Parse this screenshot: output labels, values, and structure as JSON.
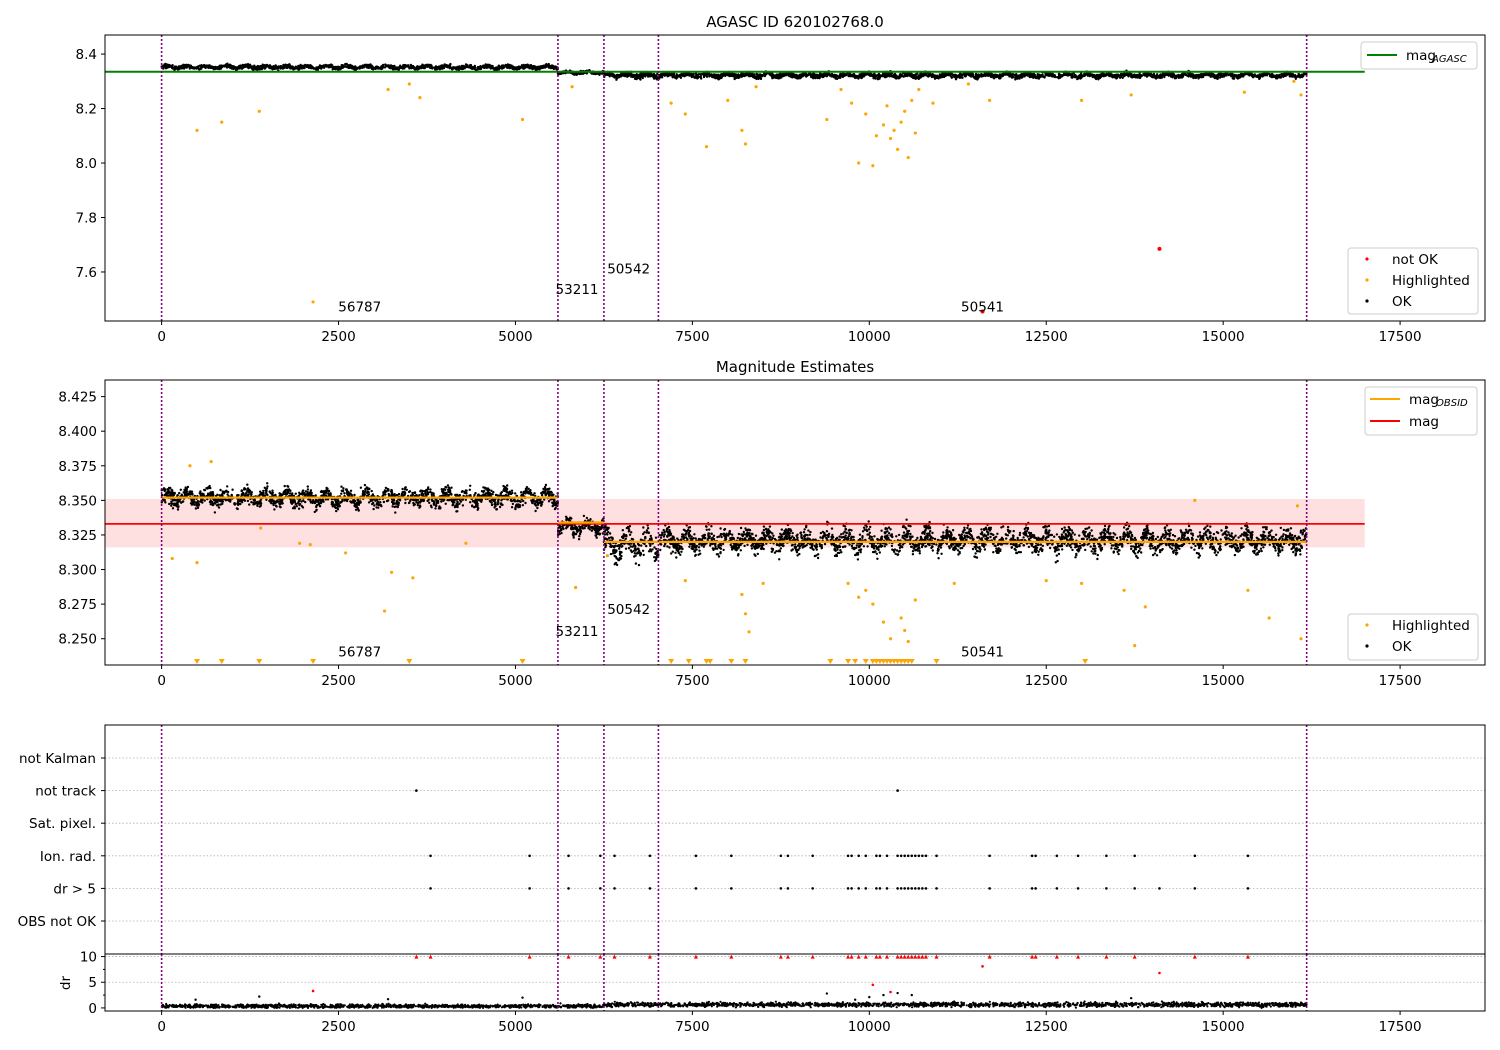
{
  "chart_data": [
    {
      "type": "scatter",
      "title": "AGASC ID 620102768.0",
      "xlim": [
        -800,
        18700
      ],
      "ylim": [
        7.42,
        8.47
      ],
      "xticks": [
        0,
        2500,
        5000,
        7500,
        10000,
        12500,
        15000,
        17500
      ],
      "xtick_labels": [
        "0",
        "2500",
        "5000",
        "7500",
        "10000",
        "12500",
        "15000",
        "17500"
      ],
      "yticks": [
        7.6,
        7.8,
        8.0,
        8.2,
        8.4
      ],
      "ytick_labels": [
        "7.6",
        "7.8",
        "8.0",
        "8.2",
        "8.4"
      ],
      "obsid_boundaries": [
        0,
        5600,
        6250,
        7020,
        16180
      ],
      "obsid_labels": [
        {
          "text": "56787",
          "x": 2800,
          "y": 7.455
        },
        {
          "text": "53211",
          "x": 5870,
          "y": 7.52
        },
        {
          "text": "50542",
          "x": 6600,
          "y": 7.595
        },
        {
          "text": "50541",
          "x": 11600,
          "y": 7.455
        }
      ],
      "mag_agasc": 8.335,
      "mag_agasc_xrange": [
        -800,
        17000
      ],
      "segments": [
        {
          "x0": 0,
          "x1": 5600,
          "center": 8.352,
          "spread": 0.008
        },
        {
          "x0": 5600,
          "x1": 6250,
          "center": 8.332,
          "spread": 0.006
        },
        {
          "x0": 6250,
          "x1": 7020,
          "center": 8.322,
          "spread": 0.012
        },
        {
          "x0": 7020,
          "x1": 16180,
          "center": 8.322,
          "spread": 0.01
        }
      ],
      "highlighted": [
        [
          500,
          8.12
        ],
        [
          850,
          8.15
        ],
        [
          1380,
          8.19
        ],
        [
          2140,
          7.49
        ],
        [
          3200,
          8.27
        ],
        [
          3500,
          8.29
        ],
        [
          3650,
          8.24
        ],
        [
          5100,
          8.16
        ],
        [
          5800,
          8.28
        ],
        [
          7200,
          8.22
        ],
        [
          7400,
          8.18
        ],
        [
          7700,
          8.06
        ],
        [
          8000,
          8.23
        ],
        [
          8200,
          8.12
        ],
        [
          8250,
          8.07
        ],
        [
          8400,
          8.28
        ],
        [
          9400,
          8.16
        ],
        [
          9600,
          8.27
        ],
        [
          9750,
          8.22
        ],
        [
          9850,
          8.0
        ],
        [
          9950,
          8.18
        ],
        [
          10050,
          7.99
        ],
        [
          10100,
          8.1
        ],
        [
          10200,
          8.14
        ],
        [
          10250,
          8.21
        ],
        [
          10300,
          8.09
        ],
        [
          10350,
          8.12
        ],
        [
          10400,
          8.05
        ],
        [
          10450,
          8.15
        ],
        [
          10500,
          8.19
        ],
        [
          10550,
          8.02
        ],
        [
          10600,
          8.23
        ],
        [
          10650,
          8.11
        ],
        [
          10700,
          8.27
        ],
        [
          10900,
          8.22
        ],
        [
          11400,
          8.29
        ],
        [
          11700,
          8.23
        ],
        [
          13000,
          8.23
        ],
        [
          13700,
          8.25
        ],
        [
          15300,
          8.26
        ],
        [
          16000,
          8.3
        ],
        [
          16100,
          8.25
        ]
      ],
      "not_ok": [
        [
          11600,
          7.455
        ],
        [
          14100,
          7.685
        ]
      ],
      "legend_top": [
        {
          "label": "mag",
          "sub": "AGASC",
          "color": "#008000"
        }
      ],
      "legend_bottom": [
        {
          "label": "not OK",
          "color": "#ff0000"
        },
        {
          "label": "Highlighted",
          "color": "#ffa500"
        },
        {
          "label": "OK",
          "color": "#000000"
        }
      ]
    },
    {
      "type": "scatter",
      "title": "Magnitude Estimates",
      "xlim": [
        -800,
        18700
      ],
      "ylim": [
        8.231,
        8.437
      ],
      "xticks": [
        0,
        2500,
        5000,
        7500,
        10000,
        12500,
        15000,
        17500
      ],
      "xtick_labels": [
        "0",
        "2500",
        "5000",
        "7500",
        "10000",
        "12500",
        "15000",
        "17500"
      ],
      "yticks": [
        8.25,
        8.275,
        8.3,
        8.325,
        8.35,
        8.375,
        8.4,
        8.425
      ],
      "ytick_labels": [
        "8.250",
        "8.275",
        "8.300",
        "8.325",
        "8.350",
        "8.375",
        "8.400",
        "8.425"
      ],
      "obsid_boundaries": [
        0,
        5600,
        6250,
        7020,
        16180
      ],
      "obsid_labels": [
        {
          "text": "56787",
          "x": 2800,
          "y": 8.237
        },
        {
          "text": "53211",
          "x": 5870,
          "y": 8.252
        },
        {
          "text": "50542",
          "x": 6600,
          "y": 8.268
        },
        {
          "text": "50541",
          "x": 11600,
          "y": 8.237
        }
      ],
      "mag": 8.333,
      "mag_band": [
        8.316,
        8.351
      ],
      "mag_xrange": [
        -800,
        17000
      ],
      "mag_obsid": [
        {
          "x0": 0,
          "x1": 5600,
          "y": 8.352
        },
        {
          "x0": 5600,
          "x1": 6250,
          "y": 8.334
        },
        {
          "x0": 6250,
          "x1": 16180,
          "y": 8.32
        }
      ],
      "segments": [
        {
          "x0": 0,
          "x1": 5600,
          "center": 8.352,
          "spread": 0.007
        },
        {
          "x0": 5600,
          "x1": 6250,
          "center": 8.331,
          "spread": 0.006
        },
        {
          "x0": 6250,
          "x1": 7020,
          "center": 8.318,
          "spread": 0.011
        },
        {
          "x0": 7020,
          "x1": 16180,
          "center": 8.321,
          "spread": 0.009
        }
      ],
      "highlighted": [
        [
          150,
          8.308
        ],
        [
          400,
          8.375
        ],
        [
          500,
          8.305
        ],
        [
          700,
          8.378
        ],
        [
          1400,
          8.33
        ],
        [
          1950,
          8.319
        ],
        [
          2100,
          8.318
        ],
        [
          2600,
          8.312
        ],
        [
          3150,
          8.27
        ],
        [
          3250,
          8.298
        ],
        [
          3550,
          8.294
        ],
        [
          4300,
          8.319
        ],
        [
          5850,
          8.287
        ],
        [
          6300,
          8.31
        ],
        [
          7400,
          8.292
        ],
        [
          8200,
          8.282
        ],
        [
          8250,
          8.268
        ],
        [
          8300,
          8.255
        ],
        [
          8500,
          8.29
        ],
        [
          9700,
          8.29
        ],
        [
          9850,
          8.28
        ],
        [
          9950,
          8.285
        ],
        [
          10050,
          8.275
        ],
        [
          10200,
          8.262
        ],
        [
          10300,
          8.25
        ],
        [
          10450,
          8.265
        ],
        [
          10500,
          8.256
        ],
        [
          10550,
          8.248
        ],
        [
          10650,
          8.278
        ],
        [
          11200,
          8.29
        ],
        [
          12500,
          8.292
        ],
        [
          13000,
          8.29
        ],
        [
          13600,
          8.285
        ],
        [
          13750,
          8.245
        ],
        [
          13900,
          8.273
        ],
        [
          14600,
          8.35
        ],
        [
          15350,
          8.285
        ],
        [
          15650,
          8.265
        ],
        [
          16050,
          8.346
        ],
        [
          16100,
          8.25
        ]
      ],
      "below_range": [
        500,
        850,
        1380,
        2140,
        3500,
        5100,
        7200,
        7450,
        7700,
        7750,
        8050,
        8250,
        9450,
        9700,
        9800,
        9950,
        10050,
        10100,
        10150,
        10200,
        10250,
        10300,
        10350,
        10400,
        10450,
        10500,
        10550,
        10600,
        10950,
        13050
      ],
      "legend_top": [
        {
          "label": "mag",
          "sub": "OBSID",
          "color": "#ffa500"
        },
        {
          "label": "mag",
          "sub": "",
          "color": "#ff0000"
        }
      ],
      "legend_bottom": [
        {
          "label": "Highlighted",
          "color": "#ffa500"
        },
        {
          "label": "OK",
          "color": "#000000"
        }
      ]
    },
    {
      "type": "scatter",
      "title": "",
      "xlim": [
        -800,
        18700
      ],
      "categories": [
        "not Kalman",
        "not track",
        "Sat. pixel.",
        "Ion. rad.",
        "dr > 5",
        "OBS not OK"
      ],
      "obsid_boundaries": [
        0,
        5600,
        6250,
        7020,
        16180
      ],
      "flag_points": {
        "not track": [
          3600,
          10400
        ],
        "Ion. rad.": [
          3800,
          5200,
          5750,
          6200,
          6400,
          6900,
          7550,
          8050,
          8750,
          8850,
          9200,
          9700,
          9750,
          9850,
          9950,
          10100,
          10150,
          10250,
          10400,
          10450,
          10500,
          10550,
          10600,
          10650,
          10700,
          10750,
          10800,
          10950,
          11700,
          12300,
          12350,
          12650,
          12950,
          13350,
          13750,
          14600,
          15350
        ],
        "dr > 5": [
          3800,
          5200,
          5750,
          6200,
          6400,
          6900,
          7550,
          8050,
          8750,
          8850,
          9200,
          9700,
          9750,
          9850,
          9950,
          10100,
          10150,
          10250,
          10400,
          10450,
          10500,
          10550,
          10600,
          10650,
          10700,
          10750,
          10800,
          10950,
          11700,
          12300,
          12350,
          12650,
          12950,
          13350,
          13750,
          14100,
          14600,
          15350
        ]
      }
    },
    {
      "type": "scatter",
      "title": "",
      "ylabel": "dr",
      "xlim": [
        -800,
        18700
      ],
      "ylim": [
        -0.6,
        10.5
      ],
      "xticks": [
        0,
        2500,
        5000,
        7500,
        10000,
        12500,
        15000,
        17500
      ],
      "xtick_labels": [
        "0",
        "2500",
        "5000",
        "7500",
        "10000",
        "12500",
        "15000",
        "17500"
      ],
      "yticks": [
        0,
        5,
        10
      ],
      "ytick_labels": [
        "0",
        "5",
        "10"
      ],
      "obsid_boundaries": [
        0,
        5600,
        6250,
        7020,
        16180
      ],
      "clipped_red": [
        3600,
        3800,
        5200,
        5750,
        6200,
        6400,
        6900,
        7550,
        8050,
        8750,
        8850,
        9200,
        9700,
        9750,
        9850,
        9950,
        10100,
        10150,
        10250,
        10400,
        10450,
        10500,
        10550,
        10600,
        10650,
        10700,
        10750,
        10800,
        10950,
        11700,
        12300,
        12350,
        12650,
        12950,
        13350,
        13750,
        14600,
        15350
      ],
      "red_points": [
        [
          2140,
          3.3
        ],
        [
          10050,
          4.5
        ],
        [
          10300,
          3.1
        ],
        [
          11600,
          8.1
        ],
        [
          14100,
          6.8
        ]
      ],
      "scatter_points": [
        [
          480,
          1.6
        ],
        [
          1380,
          2.2
        ],
        [
          3200,
          1.7
        ],
        [
          5100,
          2.0
        ],
        [
          9400,
          2.8
        ],
        [
          9800,
          1.6
        ],
        [
          10000,
          2.1
        ],
        [
          10200,
          2.5
        ],
        [
          10400,
          2.9
        ],
        [
          10600,
          2.5
        ],
        [
          13700,
          1.9
        ]
      ]
    }
  ]
}
